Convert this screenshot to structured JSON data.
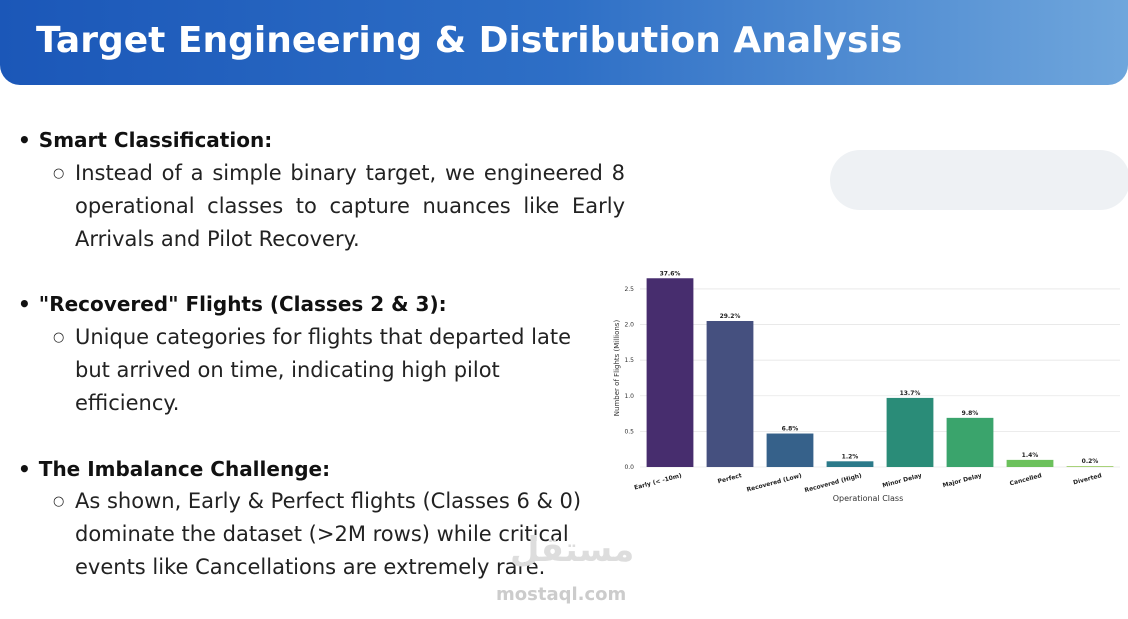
{
  "header": {
    "title": "Target Engineering & Distribution Analysis"
  },
  "sections": [
    {
      "heading": "Smart Classification:",
      "text": "Instead of a simple binary target, we engineered 8 operational classes to capture nuances like Early Arrivals and Pilot Recovery."
    },
    {
      "heading": "\"Recovered\" Flights (Classes 2 & 3):",
      "text": "Unique categories for flights that departed late but arrived on time, indicating high pilot efficiency."
    },
    {
      "heading": "The Imbalance Challenge:",
      "text": "As shown, Early & Perfect flights (Classes 6 & 0) dominate the dataset (>2M rows) while critical events like Cancellations are extremely rare."
    }
  ],
  "watermark": {
    "arabic": "مستقل",
    "site": "mostaql.com"
  },
  "chart_data": {
    "type": "bar",
    "xlabel": "Operational Class",
    "ylabel": "Number of Flights (Millions)",
    "categories": [
      "Early (< -10m)",
      "Perfect",
      "Recovered (Low)",
      "Recovered (High)",
      "Minor Delay",
      "Major Delay",
      "Cancelled",
      "Diverted"
    ],
    "values": [
      2.65,
      2.05,
      0.47,
      0.08,
      0.97,
      0.69,
      0.1,
      0.014
    ],
    "share_labels": [
      "37.6%",
      "29.2%",
      "6.8%",
      "1.2%",
      "13.7%",
      "9.8%",
      "1.4%",
      "0.2%"
    ],
    "colors": [
      "#472d6e",
      "#45507f",
      "#36618a",
      "#2b7a8a",
      "#2a8c78",
      "#3aa46c",
      "#6cc15c",
      "#a8d27a"
    ],
    "ylim": [
      0,
      2.78
    ],
    "yticks": [
      {
        "value": 0,
        "label": "0.0"
      },
      0.5,
      {
        "value": 1,
        "label": "1.0"
      },
      1.5,
      {
        "value": 2,
        "label": "2.0"
      },
      2.5
    ],
    "grid": true
  }
}
